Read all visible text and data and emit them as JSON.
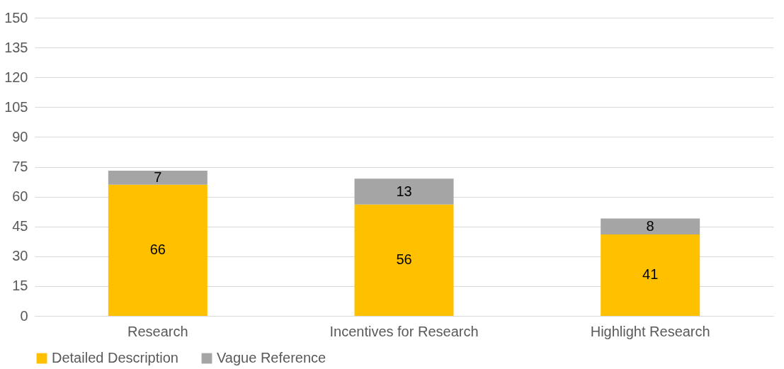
{
  "chart_data": {
    "type": "bar",
    "stacked": true,
    "categories": [
      "Research",
      "Incentives for Research",
      "Highlight Research"
    ],
    "series": [
      {
        "name": "Detailed Description",
        "color": "#ffc000",
        "values": [
          66,
          56,
          41
        ]
      },
      {
        "name": "Vague Reference",
        "color": "#a5a5a5",
        "values": [
          7,
          13,
          8
        ]
      }
    ],
    "ylim": [
      0,
      150
    ],
    "yticks": [
      0,
      15,
      30,
      45,
      60,
      75,
      90,
      105,
      120,
      135,
      150
    ],
    "grid": "y",
    "legend": "bottom",
    "data_labels": true
  }
}
